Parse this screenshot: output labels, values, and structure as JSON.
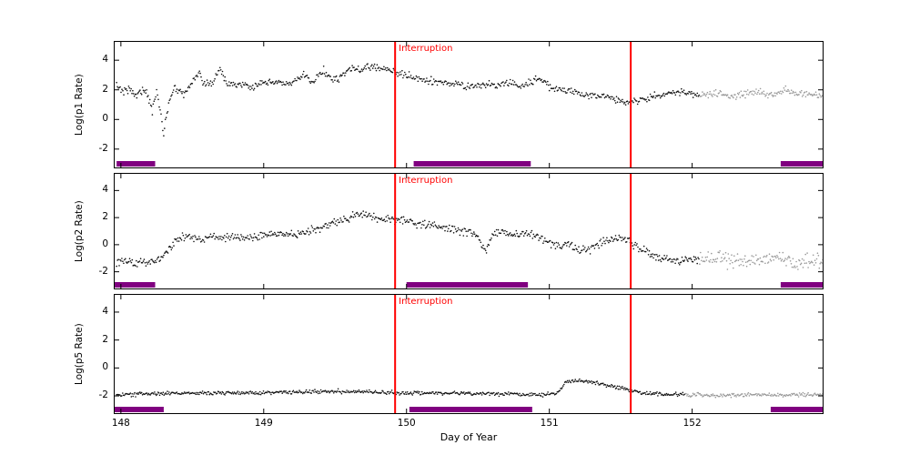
{
  "xlabel": "Day of Year",
  "chart_data": [
    {
      "type": "scatter",
      "ylabel": "Log(p1 Rate)",
      "annotation": "Interruption",
      "annotation_color": "#ff0000",
      "xlim": [
        147.95,
        152.92
      ],
      "ylim": [
        -3.3,
        5.3
      ],
      "yticks": [
        -2,
        0,
        2,
        4
      ],
      "xticks": [
        148,
        149,
        150,
        151,
        152
      ],
      "interruption_lines": [
        149.92,
        151.57
      ],
      "interruption_color": "#ff0000",
      "bars": [
        [
          147.97,
          148.24
        ],
        [
          150.05,
          150.87
        ],
        [
          152.62,
          152.92
        ]
      ],
      "bar_color": "#800080",
      "point_color": "#111111",
      "gray_color": "#999999",
      "gray_after": 152.05,
      "noise": 0.12,
      "anchors": [
        [
          147.97,
          2.3
        ],
        [
          148.02,
          1.9
        ],
        [
          148.06,
          2.1
        ],
        [
          148.1,
          1.6
        ],
        [
          148.14,
          2.0
        ],
        [
          148.18,
          1.8
        ],
        [
          148.22,
          0.6
        ],
        [
          148.25,
          2.0
        ],
        [
          148.3,
          -0.9
        ],
        [
          148.34,
          1.4
        ],
        [
          148.38,
          2.2
        ],
        [
          148.44,
          1.7
        ],
        [
          148.5,
          2.5
        ],
        [
          148.55,
          3.3
        ],
        [
          148.58,
          2.3
        ],
        [
          148.64,
          2.5
        ],
        [
          148.7,
          3.4
        ],
        [
          148.74,
          2.4
        ],
        [
          148.8,
          2.4
        ],
        [
          148.9,
          2.2
        ],
        [
          149.0,
          2.4
        ],
        [
          149.1,
          2.5
        ],
        [
          149.2,
          2.4
        ],
        [
          149.28,
          3.0
        ],
        [
          149.34,
          2.5
        ],
        [
          149.42,
          3.3
        ],
        [
          149.48,
          2.7
        ],
        [
          149.55,
          2.9
        ],
        [
          149.62,
          3.5
        ],
        [
          149.68,
          3.3
        ],
        [
          149.74,
          3.5
        ],
        [
          149.8,
          3.6
        ],
        [
          149.86,
          3.3
        ],
        [
          149.92,
          3.2
        ],
        [
          150.0,
          3.0
        ],
        [
          150.08,
          2.7
        ],
        [
          150.16,
          2.6
        ],
        [
          150.24,
          2.5
        ],
        [
          150.32,
          2.4
        ],
        [
          150.4,
          2.3
        ],
        [
          150.48,
          2.2
        ],
        [
          150.56,
          2.4
        ],
        [
          150.64,
          2.2
        ],
        [
          150.72,
          2.6
        ],
        [
          150.8,
          2.2
        ],
        [
          150.88,
          2.6
        ],
        [
          150.94,
          2.8
        ],
        [
          151.0,
          2.2
        ],
        [
          151.08,
          2.0
        ],
        [
          151.16,
          1.9
        ],
        [
          151.24,
          1.7
        ],
        [
          151.32,
          1.6
        ],
        [
          151.4,
          1.5
        ],
        [
          151.5,
          1.3
        ],
        [
          151.57,
          1.2
        ],
        [
          151.66,
          1.4
        ],
        [
          151.76,
          1.6
        ],
        [
          151.86,
          1.8
        ],
        [
          151.96,
          1.8
        ],
        [
          152.06,
          1.6
        ],
        [
          152.16,
          1.8
        ],
        [
          152.26,
          1.5
        ],
        [
          152.36,
          1.7
        ],
        [
          152.46,
          1.9
        ],
        [
          152.56,
          1.6
        ],
        [
          152.66,
          2.0
        ],
        [
          152.76,
          1.7
        ],
        [
          152.86,
          1.7
        ],
        [
          152.92,
          1.6
        ]
      ]
    },
    {
      "type": "scatter",
      "ylabel": "Log(p2 Rate)",
      "annotation": "Interruption",
      "annotation_color": "#ff0000",
      "xlim": [
        147.95,
        152.92
      ],
      "ylim": [
        -3.3,
        5.3
      ],
      "yticks": [
        -2,
        0,
        2,
        4
      ],
      "xticks": [
        148,
        149,
        150,
        151,
        152
      ],
      "interruption_lines": [
        149.92,
        151.57
      ],
      "interruption_color": "#ff0000",
      "bars": [
        [
          147.95,
          148.24
        ],
        [
          150.0,
          150.85
        ],
        [
          152.62,
          152.92
        ]
      ],
      "bar_color": "#800080",
      "point_color": "#111111",
      "gray_color": "#999999",
      "gray_after": 152.05,
      "noise": 0.15,
      "anchors": [
        [
          147.97,
          -1.3
        ],
        [
          148.05,
          -1.2
        ],
        [
          148.12,
          -1.4
        ],
        [
          148.2,
          -1.2
        ],
        [
          148.27,
          -1.1
        ],
        [
          148.33,
          -0.4
        ],
        [
          148.4,
          0.4
        ],
        [
          148.48,
          0.6
        ],
        [
          148.56,
          0.3
        ],
        [
          148.64,
          0.6
        ],
        [
          148.72,
          0.5
        ],
        [
          148.8,
          0.6
        ],
        [
          148.9,
          0.5
        ],
        [
          149.0,
          0.7
        ],
        [
          149.1,
          0.8
        ],
        [
          149.2,
          0.7
        ],
        [
          149.3,
          1.0
        ],
        [
          149.4,
          1.2
        ],
        [
          149.5,
          1.6
        ],
        [
          149.58,
          1.9
        ],
        [
          149.66,
          2.2
        ],
        [
          149.74,
          2.1
        ],
        [
          149.82,
          2.0
        ],
        [
          149.9,
          1.9
        ],
        [
          149.98,
          1.8
        ],
        [
          150.06,
          1.6
        ],
        [
          150.14,
          1.4
        ],
        [
          150.22,
          1.3
        ],
        [
          150.3,
          1.1
        ],
        [
          150.38,
          1.0
        ],
        [
          150.46,
          0.9
        ],
        [
          150.52,
          0.2
        ],
        [
          150.56,
          -0.5
        ],
        [
          150.6,
          0.7
        ],
        [
          150.66,
          1.0
        ],
        [
          150.72,
          0.8
        ],
        [
          150.78,
          0.7
        ],
        [
          150.84,
          0.9
        ],
        [
          150.92,
          0.6
        ],
        [
          151.0,
          0.2
        ],
        [
          151.08,
          -0.2
        ],
        [
          151.14,
          0.1
        ],
        [
          151.2,
          -0.4
        ],
        [
          151.28,
          -0.3
        ],
        [
          151.36,
          0.1
        ],
        [
          151.44,
          0.4
        ],
        [
          151.5,
          0.5
        ],
        [
          151.56,
          0.2
        ],
        [
          151.62,
          -0.2
        ],
        [
          151.7,
          -0.7
        ],
        [
          151.8,
          -1.0
        ],
        [
          151.9,
          -1.3
        ],
        [
          152.0,
          -1.0
        ],
        [
          152.1,
          -1.2
        ],
        [
          152.2,
          -1.0
        ],
        [
          152.3,
          -1.3
        ],
        [
          152.4,
          -1.1
        ],
        [
          152.5,
          -1.2
        ],
        [
          152.6,
          -1.0
        ],
        [
          152.7,
          -1.3
        ],
        [
          152.8,
          -1.1
        ],
        [
          152.92,
          -1.2
        ]
      ]
    },
    {
      "type": "scatter",
      "ylabel": "Log(p5 Rate)",
      "xlabel": "Day of Year",
      "annotation": "Interruption",
      "annotation_color": "#ff0000",
      "xlim": [
        147.95,
        152.92
      ],
      "ylim": [
        -3.3,
        5.3
      ],
      "yticks": [
        -2,
        0,
        2,
        4
      ],
      "xticks": [
        148,
        149,
        150,
        151,
        152
      ],
      "interruption_lines": [
        149.92,
        151.57
      ],
      "interruption_color": "#ff0000",
      "bars": [
        [
          147.95,
          148.3
        ],
        [
          150.02,
          150.88
        ],
        [
          152.55,
          152.92
        ]
      ],
      "bar_color": "#800080",
      "point_color": "#111111",
      "gray_color": "#999999",
      "gray_after": 151.95,
      "noise": 0.07,
      "anchors": [
        [
          147.97,
          -1.9
        ],
        [
          148.2,
          -1.85
        ],
        [
          148.5,
          -1.8
        ],
        [
          148.8,
          -1.8
        ],
        [
          149.1,
          -1.75
        ],
        [
          149.4,
          -1.7
        ],
        [
          149.6,
          -1.65
        ],
        [
          149.8,
          -1.75
        ],
        [
          150.0,
          -1.8
        ],
        [
          150.3,
          -1.8
        ],
        [
          150.6,
          -1.85
        ],
        [
          150.9,
          -1.9
        ],
        [
          151.05,
          -1.85
        ],
        [
          151.12,
          -1.0
        ],
        [
          151.2,
          -0.9
        ],
        [
          151.3,
          -1.0
        ],
        [
          151.4,
          -1.2
        ],
        [
          151.5,
          -1.45
        ],
        [
          151.6,
          -1.7
        ],
        [
          151.7,
          -1.85
        ],
        [
          151.85,
          -1.9
        ],
        [
          152.0,
          -1.9
        ],
        [
          152.2,
          -1.95
        ],
        [
          152.4,
          -1.9
        ],
        [
          152.6,
          -1.95
        ],
        [
          152.8,
          -1.9
        ],
        [
          152.92,
          -1.95
        ]
      ]
    }
  ]
}
